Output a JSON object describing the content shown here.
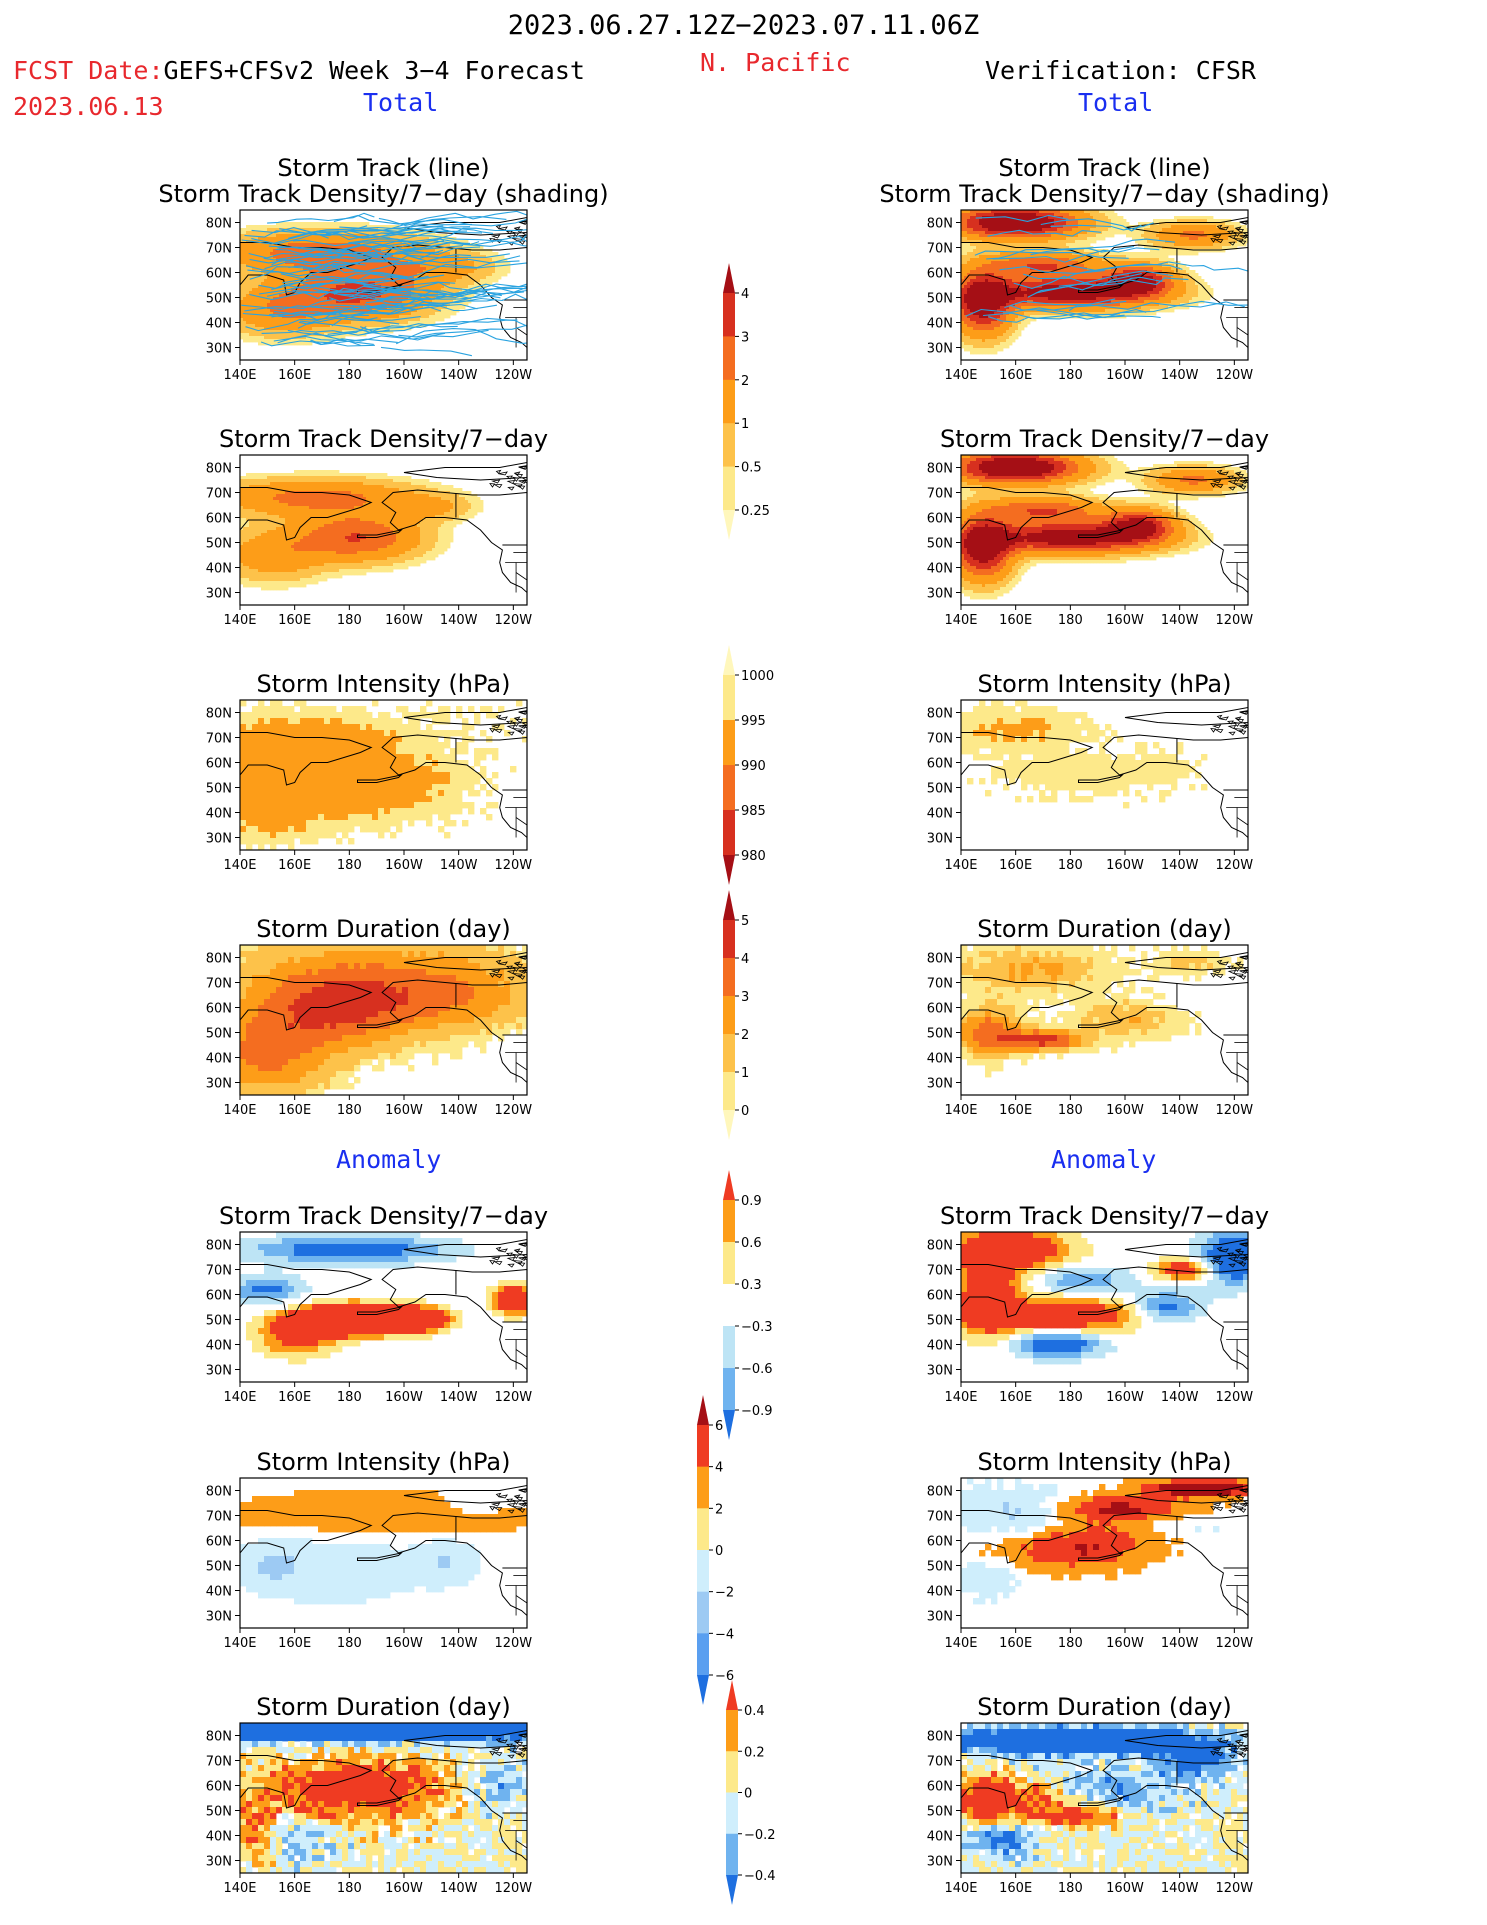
{
  "header": {
    "date_range": "2023.06.27.12Z−2023.07.11.06Z",
    "fcst_label": "FCST Date:",
    "fcst_model": "GEFS+CFSv2 Week 3−4 Forecast",
    "fcst_date": "2023.06.13",
    "region": "N. Pacific",
    "verification": "Verification: CFSR",
    "total_left": "Total",
    "total_right": "Total",
    "anomaly_left": "Anomaly",
    "anomaly_right": "Anomaly"
  },
  "colors": {
    "red_text": "#e8282d",
    "blue_text": "#1a2ff0",
    "land_outline": "#000000",
    "storm_track_line": "#2aa3e0"
  },
  "chart_data": [
    {
      "id": "fc-track",
      "type": "heatmap",
      "title": "Storm Track (line)\nStorm Track Density/7−day (shading)",
      "side": "forecast",
      "field": "density",
      "lines": true
    },
    {
      "id": "ob-track",
      "type": "heatmap",
      "title": "Storm Track (line)\nStorm Track Density/7−day (shading)",
      "side": "verification",
      "field": "density",
      "lines": true
    },
    {
      "id": "fc-dens",
      "type": "heatmap",
      "title": "Storm Track Density/7−day",
      "side": "forecast",
      "field": "density"
    },
    {
      "id": "ob-dens",
      "type": "heatmap",
      "title": "Storm Track Density/7−day",
      "side": "verification",
      "field": "density"
    },
    {
      "id": "fc-int",
      "type": "heatmap",
      "title": "Storm Intensity (hPa)",
      "side": "forecast",
      "field": "intensity"
    },
    {
      "id": "ob-int",
      "type": "heatmap",
      "title": "Storm Intensity (hPa)",
      "side": "verification",
      "field": "intensity"
    },
    {
      "id": "fc-dur",
      "type": "heatmap",
      "title": "Storm Duration (day)",
      "side": "forecast",
      "field": "duration"
    },
    {
      "id": "ob-dur",
      "type": "heatmap",
      "title": "Storm Duration (day)",
      "side": "verification",
      "field": "duration"
    },
    {
      "id": "fc-adens",
      "type": "heatmap",
      "title": "Storm Track Density/7−day",
      "side": "forecast",
      "field": "anom_density"
    },
    {
      "id": "ob-adens",
      "type": "heatmap",
      "title": "Storm Track Density/7−day",
      "side": "verification",
      "field": "anom_density"
    },
    {
      "id": "fc-aint",
      "type": "heatmap",
      "title": "Storm Intensity (hPa)",
      "side": "forecast",
      "field": "anom_intensity"
    },
    {
      "id": "ob-aint",
      "type": "heatmap",
      "title": "Storm Intensity (hPa)",
      "side": "verification",
      "field": "anom_intensity"
    },
    {
      "id": "fc-adur",
      "type": "heatmap",
      "title": "Storm Duration (day)",
      "side": "forecast",
      "field": "anom_duration"
    },
    {
      "id": "ob-adur",
      "type": "heatmap",
      "title": "Storm Duration (day)",
      "side": "verification",
      "field": "anom_duration"
    }
  ],
  "axes": {
    "x_ticks": [
      "140E",
      "160E",
      "180",
      "160W",
      "140W",
      "120W"
    ],
    "y_ticks": [
      "80N",
      "70N",
      "60N",
      "50N",
      "40N",
      "30N"
    ],
    "lon_range": [
      140,
      245
    ],
    "lat_range": [
      25,
      85
    ]
  },
  "colorbars": [
    {
      "id": "cb-density",
      "ticks": [
        "4",
        "3",
        "2",
        "1",
        "0.5",
        "0.25"
      ],
      "colors": [
        "#a50f15",
        "#d7301f",
        "#f46d20",
        "#fd9d18",
        "#fdc24a",
        "#fde98a",
        "#fff7bc"
      ],
      "extend": "both"
    },
    {
      "id": "cb-intensity",
      "ticks": [
        "1000",
        "995",
        "990",
        "985",
        "980"
      ],
      "colors": [
        "#fff7bc",
        "#fde98a",
        "#fd9d18",
        "#f46d20",
        "#d7301f",
        "#a50f15"
      ],
      "extend": "both"
    },
    {
      "id": "cb-duration",
      "ticks": [
        "5",
        "4",
        "3",
        "2",
        "1",
        "0"
      ],
      "colors": [
        "#a50f15",
        "#d7301f",
        "#f46d20",
        "#fd9d18",
        "#fdc24a",
        "#fde98a",
        "#fff7bc"
      ],
      "extend": "both"
    },
    {
      "id": "cb-adensity",
      "ticks": [
        "0.9",
        "0.6",
        "0.3",
        "−0.3",
        "−0.6",
        "−0.9"
      ],
      "colors": [
        "#ef3b22",
        "#fd9d18",
        "#fde98a",
        "#ffffff",
        "#bde4f5",
        "#6fb3ef",
        "#1e6fe0"
      ],
      "extend": "both"
    },
    {
      "id": "cb-aintensity",
      "ticks": [
        "6",
        "4",
        "2",
        "0",
        "−2",
        "−4",
        "−6"
      ],
      "colors": [
        "#a50f15",
        "#ef3b22",
        "#fd9d18",
        "#fde98a",
        "#cfeefc",
        "#9dcaf3",
        "#5a9ff0",
        "#1e6fe0"
      ],
      "extend": "both"
    },
    {
      "id": "cb-aduration",
      "ticks": [
        "0.4",
        "0.2",
        "0",
        "−0.2",
        "−0.4"
      ],
      "colors": [
        "#ef3b22",
        "#fd9d18",
        "#fde98a",
        "#cfeefc",
        "#6fb3ef",
        "#1e6fe0"
      ],
      "extend": "both"
    }
  ]
}
